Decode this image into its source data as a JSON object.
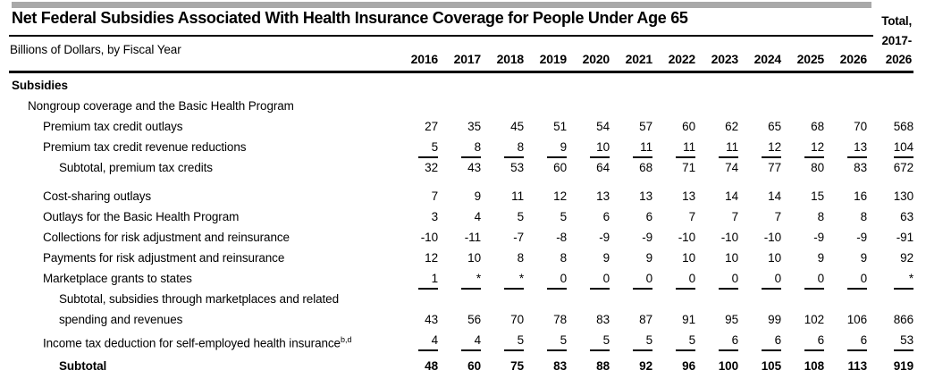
{
  "header": {
    "title": "Net Federal Subsidies Associated With Health Insurance Coverage for People Under Age 65",
    "subtitle": "Billions of Dollars, by Fiscal Year",
    "years": [
      "2016",
      "2017",
      "2018",
      "2019",
      "2020",
      "2021",
      "2022",
      "2023",
      "2024",
      "2025",
      "2026"
    ],
    "total_column": {
      "line1": "Total,",
      "line2": "2017-",
      "line3": "2026"
    }
  },
  "table": {
    "unit": "Billions of Dollars",
    "columns": [
      "2016",
      "2017",
      "2018",
      "2019",
      "2020",
      "2021",
      "2022",
      "2023",
      "2024",
      "2025",
      "2026",
      "Total, 2017-2026"
    ],
    "rows": [
      {
        "label": "Subsidies",
        "indent": 0,
        "bold": true,
        "values": []
      },
      {
        "label": "Nongroup coverage and the Basic Health Program",
        "indent": 1,
        "values": []
      },
      {
        "label": "Premium tax credit outlays",
        "indent": 2,
        "values": [
          "27",
          "35",
          "45",
          "51",
          "54",
          "57",
          "60",
          "62",
          "65",
          "68",
          "70",
          "568"
        ]
      },
      {
        "label": "Premium tax credit revenue reductions",
        "indent": 2,
        "sum_underline": true,
        "values": [
          "5",
          "8",
          "8",
          "9",
          "10",
          "11",
          "11",
          "11",
          "12",
          "12",
          "13",
          "104"
        ]
      },
      {
        "label": "Subtotal, premium tax credits",
        "indent": 3,
        "values": [
          "32",
          "43",
          "53",
          "60",
          "64",
          "68",
          "71",
          "74",
          "77",
          "80",
          "83",
          "672"
        ]
      },
      {
        "label": "Cost-sharing outlays",
        "indent": 2,
        "gap_before": true,
        "values": [
          "7",
          "9",
          "11",
          "12",
          "13",
          "13",
          "13",
          "14",
          "14",
          "15",
          "16",
          "130"
        ]
      },
      {
        "label": "Outlays for the Basic Health Program",
        "indent": 2,
        "values": [
          "3",
          "4",
          "5",
          "5",
          "6",
          "6",
          "7",
          "7",
          "7",
          "8",
          "8",
          "63"
        ]
      },
      {
        "label": "Collections for risk adjustment and reinsurance",
        "indent": 2,
        "values": [
          "-10",
          "-11",
          "-7",
          "-8",
          "-9",
          "-9",
          "-10",
          "-10",
          "-10",
          "-9",
          "-9",
          "-91"
        ]
      },
      {
        "label": "Payments for risk adjustment and reinsurance",
        "indent": 2,
        "values": [
          "12",
          "10",
          "8",
          "8",
          "9",
          "9",
          "10",
          "10",
          "10",
          "9",
          "9",
          "92"
        ]
      },
      {
        "label": "Marketplace grants to states",
        "indent": 2,
        "sum_underline": true,
        "values": [
          "1",
          "*",
          "*",
          "0",
          "0",
          "0",
          "0",
          "0",
          "0",
          "0",
          "0",
          "*"
        ]
      },
      {
        "label": "Subtotal, subsidies through marketplaces and related",
        "label2": "spending and revenues",
        "indent": 3,
        "values": [
          "43",
          "56",
          "70",
          "78",
          "83",
          "87",
          "91",
          "95",
          "99",
          "102",
          "106",
          "866"
        ]
      },
      {
        "label": "Income tax deduction for self-employed health insurance",
        "label_sup": "b,d",
        "indent": 2,
        "sum_underline": true,
        "values": [
          "4",
          "4",
          "5",
          "5",
          "5",
          "5",
          "5",
          "6",
          "6",
          "6",
          "6",
          "53"
        ]
      },
      {
        "label": "Subtotal",
        "indent": 3,
        "bold": true,
        "gap_before_sm": true,
        "values": [
          "48",
          "60",
          "75",
          "83",
          "88",
          "92",
          "96",
          "100",
          "105",
          "108",
          "113",
          "919"
        ]
      }
    ]
  }
}
